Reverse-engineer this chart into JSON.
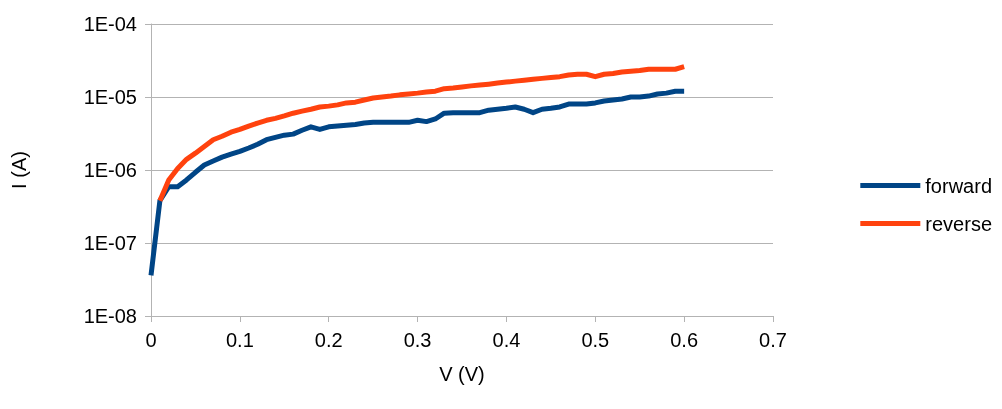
{
  "chart_data": {
    "type": "line",
    "xlabel": "V (V)",
    "ylabel": "I (A)",
    "log": "y",
    "grid": "y",
    "legend": "right",
    "marker": "none",
    "line_style": "solid",
    "x": [
      0,
      0.01,
      0.02,
      0.03,
      0.04,
      0.05,
      0.06,
      0.07,
      0.08,
      0.09,
      0.1,
      0.11,
      0.12,
      0.13,
      0.14,
      0.15,
      0.16,
      0.17,
      0.18,
      0.19,
      0.2,
      0.21,
      0.22,
      0.23,
      0.24,
      0.25,
      0.26,
      0.27,
      0.28,
      0.29,
      0.3,
      0.31,
      0.32,
      0.33,
      0.34,
      0.35,
      0.36,
      0.37,
      0.38,
      0.39,
      0.4,
      0.41,
      0.42,
      0.43,
      0.44,
      0.45,
      0.46,
      0.47,
      0.48,
      0.49,
      0.5,
      0.51,
      0.52,
      0.53,
      0.54,
      0.55,
      0.56,
      0.57,
      0.58,
      0.59,
      0.6
    ],
    "series": [
      {
        "name": "forward",
        "color": "#004586",
        "values": [
          3.6e-08,
          3.8e-07,
          5.9e-07,
          5.9e-07,
          7.3e-07,
          9.3e-07,
          1.17e-06,
          1.33e-06,
          1.5e-06,
          1.65e-06,
          1.8e-06,
          2e-06,
          2.25e-06,
          2.6e-06,
          2.8e-06,
          3e-06,
          3.1e-06,
          3.5e-06,
          3.9e-06,
          3.6e-06,
          3.9e-06,
          4e-06,
          4.1e-06,
          4.2e-06,
          4.4e-06,
          4.5e-06,
          4.5e-06,
          4.5e-06,
          4.5e-06,
          4.5e-06,
          4.8e-06,
          4.6e-06,
          5e-06,
          6e-06,
          6.1e-06,
          6.1e-06,
          6.1e-06,
          6.1e-06,
          6.6e-06,
          6.8e-06,
          7e-06,
          7.3e-06,
          6.8e-06,
          6.1e-06,
          6.8e-06,
          7e-06,
          7.3e-06,
          8e-06,
          8e-06,
          8e-06,
          8.3e-06,
          8.8e-06,
          9.1e-06,
          9.4e-06,
          1e-05,
          1e-05,
          1.03e-05,
          1.1e-05,
          1.13e-05,
          1.2e-05,
          1.2e-05
        ]
      },
      {
        "name": "reverse",
        "color": "#ff420e",
        "values": [
          null,
          3.8e-07,
          7.3e-07,
          1.05e-06,
          1.4e-06,
          1.7e-06,
          2.1e-06,
          2.6e-06,
          2.9e-06,
          3.3e-06,
          3.6e-06,
          4e-06,
          4.4e-06,
          4.8e-06,
          5.1e-06,
          5.5e-06,
          6e-06,
          6.4e-06,
          6.8e-06,
          7.3e-06,
          7.5e-06,
          7.8e-06,
          8.3e-06,
          8.5e-06,
          9.1e-06,
          9.7e-06,
          1e-05,
          1.03e-05,
          1.07e-05,
          1.1e-05,
          1.13e-05,
          1.17e-05,
          1.2e-05,
          1.3e-05,
          1.33e-05,
          1.37e-05,
          1.42e-05,
          1.46e-05,
          1.5e-05,
          1.55e-05,
          1.6e-05,
          1.65e-05,
          1.7e-05,
          1.75e-05,
          1.8e-05,
          1.85e-05,
          1.9e-05,
          2e-05,
          2.05e-05,
          2.05e-05,
          1.9e-05,
          2.05e-05,
          2.1e-05,
          2.2e-05,
          2.25e-05,
          2.3e-05,
          2.4e-05,
          2.4e-05,
          2.4e-05,
          2.4e-05,
          2.6e-05
        ]
      }
    ],
    "xlim": [
      0,
      0.7
    ],
    "xticks": [
      0,
      0.1,
      0.2,
      0.3,
      0.4,
      0.5,
      0.6,
      0.7
    ],
    "ylim": [
      1e-08,
      0.0001
    ],
    "yticks": [
      {
        "value": 1e-08,
        "label": "1E-08"
      },
      {
        "value": 1e-07,
        "label": "1E-07"
      },
      {
        "value": 1e-06,
        "label": "1E-06"
      },
      {
        "value": 1e-05,
        "label": "1E-05"
      },
      {
        "value": 0.0001,
        "label": "1E-04"
      }
    ]
  }
}
